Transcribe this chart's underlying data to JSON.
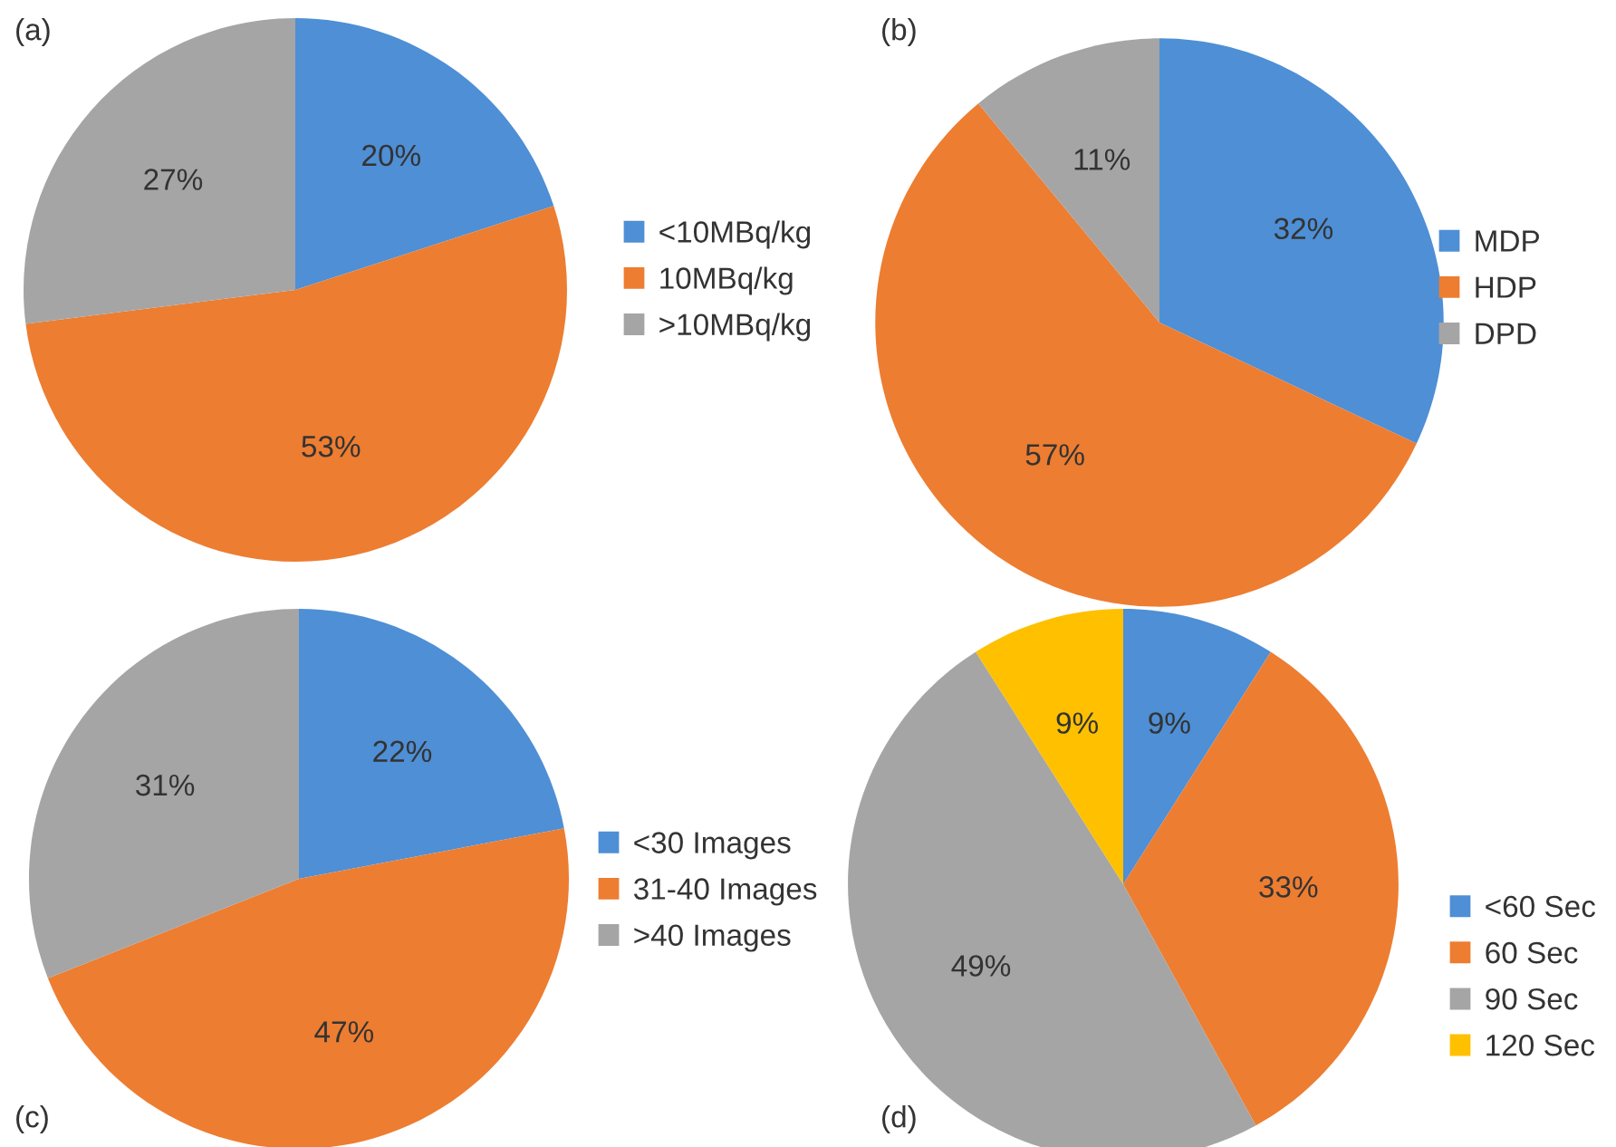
{
  "chart_data": [
    {
      "type": "pie",
      "annotations": [
        "(a)"
      ],
      "categories": [
        "<10MBq/kg",
        "10MBq/kg",
        ">10MBq/kg"
      ],
      "values": [
        20,
        53,
        27
      ],
      "value_labels": [
        "20%",
        "53%",
        "27%"
      ],
      "colors": [
        "#4e8fd6",
        "#ed7d31",
        "#a5a5a5"
      ],
      "legend": "right"
    },
    {
      "type": "pie",
      "annotations": [
        "(b)"
      ],
      "categories": [
        "MDP",
        "HDP",
        "DPD"
      ],
      "values": [
        32,
        57,
        11
      ],
      "value_labels": [
        "32%",
        "57%",
        "11%"
      ],
      "colors": [
        "#4e8fd6",
        "#ed7d31",
        "#a5a5a5"
      ],
      "legend": "right"
    },
    {
      "type": "pie",
      "annotations": [
        "(c)"
      ],
      "categories": [
        "<30 Images",
        "31-40 Images",
        ">40 Images"
      ],
      "values": [
        22,
        47,
        31
      ],
      "value_labels": [
        "22%",
        "47%",
        "31%"
      ],
      "colors": [
        "#4e8fd6",
        "#ed7d31",
        "#a5a5a5"
      ],
      "legend": "right"
    },
    {
      "type": "pie",
      "annotations": [
        "(d)"
      ],
      "categories": [
        "<60 Sec",
        "60 Sec",
        "90 Sec",
        "120 Sec"
      ],
      "values": [
        9,
        33,
        49,
        9
      ],
      "value_labels": [
        "9%",
        "33%",
        "49%",
        "9%"
      ],
      "colors": [
        "#4e8fd6",
        "#ed7d31",
        "#a5a5a5",
        "#ffc000"
      ],
      "legend": "right"
    }
  ]
}
